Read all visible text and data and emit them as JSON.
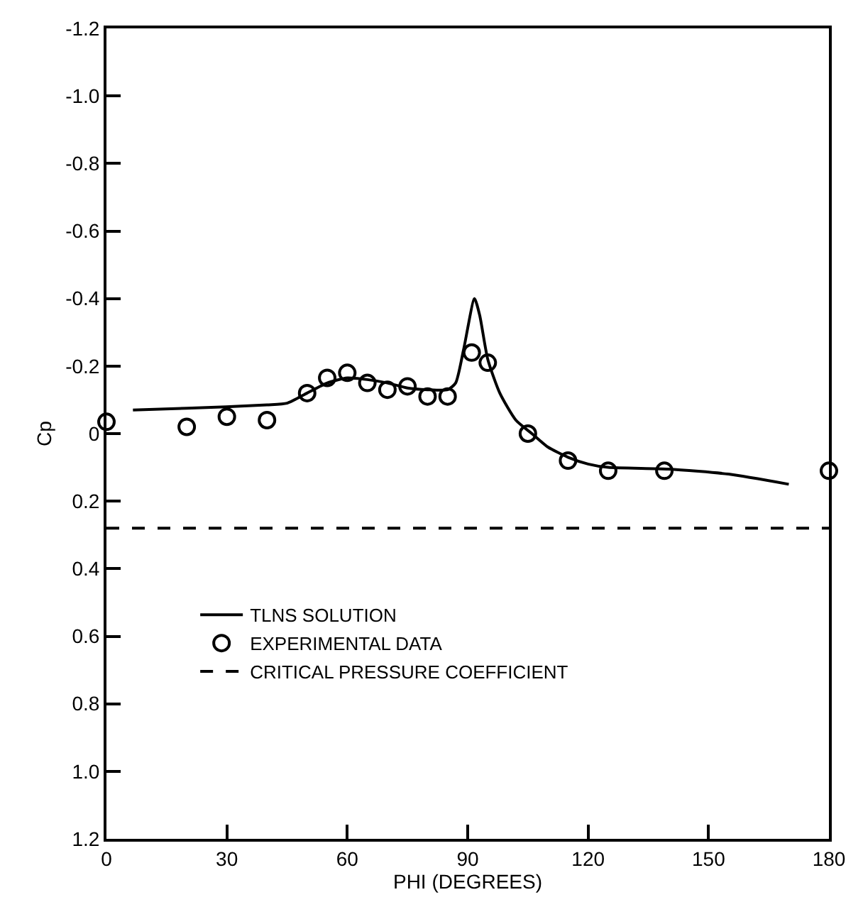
{
  "chart_data": {
    "type": "line",
    "xlabel": "PHI (DEGREES)",
    "ylabel": "Cp",
    "xlim": [
      0,
      180
    ],
    "xticks": [
      0,
      30,
      60,
      90,
      120,
      150,
      180
    ],
    "ylim": [
      1.2,
      -1.2
    ],
    "yticks": [
      -1.2,
      {
        "value": -1.0,
        "label": "-1.0"
      },
      -0.8,
      -0.6,
      -0.4,
      -0.2,
      0,
      0.2,
      0.4,
      0.6,
      0.8,
      {
        "value": 1.0,
        "label": "1.0"
      },
      1.2
    ],
    "legend": "bottom left",
    "series": [
      {
        "name": "TLNS SOLUTION",
        "color": "#000000",
        "line_style": "solid",
        "marker": "none",
        "x": [
          6.6,
          20,
          40,
          45,
          50,
          55,
          60,
          65,
          70,
          75,
          80,
          85,
          87,
          89,
          91.7,
          93,
          95,
          98,
          102,
          106,
          110,
          115,
          120,
          125,
          140,
          155,
          170
        ],
        "values": [
          -0.07,
          -0.075,
          -0.085,
          -0.09,
          -0.12,
          -0.15,
          -0.165,
          -0.16,
          -0.15,
          -0.135,
          -0.13,
          -0.13,
          -0.15,
          -0.25,
          -0.4,
          -0.35,
          -0.22,
          -0.12,
          -0.04,
          0.0,
          0.04,
          0.07,
          0.09,
          0.1,
          0.105,
          0.12,
          0.15
        ]
      },
      {
        "name": "EXPERIMENTAL DATA",
        "type": "scatter",
        "color": "#000000",
        "marker": "circle",
        "x": [
          0,
          20,
          30,
          40,
          50,
          55,
          60,
          65,
          70,
          75,
          80,
          85,
          91,
          95,
          105,
          115,
          125,
          139,
          180
        ],
        "values": [
          -0.035,
          -0.02,
          -0.05,
          -0.04,
          -0.12,
          -0.165,
          -0.18,
          -0.15,
          -0.13,
          -0.14,
          -0.11,
          -0.11,
          -0.24,
          -0.21,
          0.0,
          0.08,
          0.11,
          0.11,
          0.11
        ]
      },
      {
        "name": "CRITICAL PRESSURE COEFFICIENT",
        "color": "#000000",
        "line_style": "dashed",
        "marker": "none",
        "x": [
          0,
          180
        ],
        "values": [
          0.28,
          0.28
        ]
      }
    ]
  }
}
